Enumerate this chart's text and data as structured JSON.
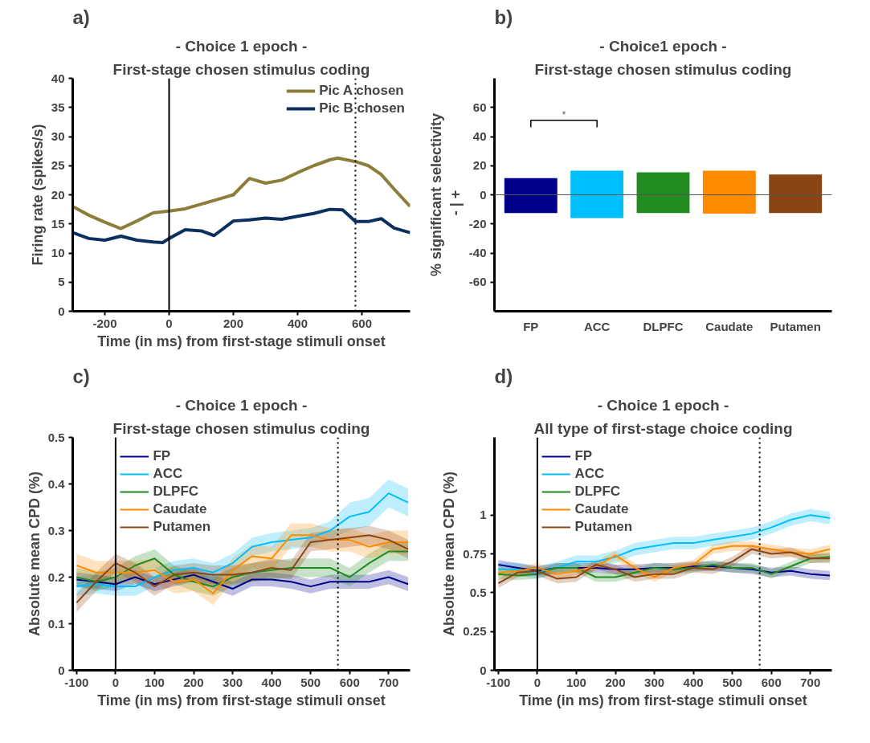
{
  "chart_data": [
    {
      "type": "line",
      "annotations": [
        "a)"
      ],
      "title": "- Choice 1 epoch -",
      "subtitle": "First-stage chosen stimulus coding",
      "xlabel": "Time (in ms) from first-stage stimuli onset",
      "ylabel": "Firing rate (spikes/s)",
      "xlim": [
        -300,
        750
      ],
      "ylim": [
        0,
        40
      ],
      "xticks": [
        -200,
        0,
        200,
        400,
        600
      ],
      "yticks": [
        0,
        5,
        10,
        15,
        20,
        25,
        30,
        35,
        40
      ],
      "legend": "top right",
      "ref_lines": [
        {
          "axis": "x",
          "value": 0,
          "color": "#000000",
          "line_style": "solid"
        },
        {
          "axis": "x",
          "value": 580,
          "color": "#000000",
          "line_style": "dotted"
        }
      ],
      "series": [
        {
          "name": "Pic A chosen",
          "color": "#8b7d3a",
          "x": [
            -300,
            -250,
            -200,
            -150,
            -100,
            -50,
            0,
            50,
            100,
            150,
            200,
            250,
            300,
            350,
            400,
            450,
            500,
            525,
            580,
            620,
            660,
            700,
            750
          ],
          "values": [
            18,
            16.5,
            15.3,
            14.2,
            15.5,
            16.9,
            17.2,
            17.6,
            18.4,
            19.2,
            20,
            22.8,
            22,
            22.5,
            23.8,
            25,
            26,
            26.3,
            25.7,
            25,
            23.5,
            21,
            18
          ]
        },
        {
          "name": "Pic B chosen",
          "color": "#0b2f5f",
          "x": [
            -300,
            -250,
            -200,
            -150,
            -100,
            -50,
            -20,
            0,
            50,
            100,
            140,
            200,
            250,
            300,
            350,
            400,
            450,
            500,
            540,
            580,
            620,
            660,
            700,
            750
          ],
          "values": [
            13.5,
            12.5,
            12.2,
            12.9,
            12.2,
            11.9,
            11.8,
            12.5,
            14,
            13.8,
            13,
            15.5,
            15.7,
            16,
            15.8,
            16.3,
            16.8,
            17.5,
            17.4,
            15.4,
            15.4,
            15.9,
            14.3,
            13.5
          ]
        }
      ]
    },
    {
      "type": "bar",
      "stacked": true,
      "annotations": [
        "b)",
        "*"
      ],
      "title": "- Choice1 epoch -",
      "subtitle": "First-stage chosen stimulus coding",
      "ylabel": "% significant selectivity\n-   |   +",
      "categories": [
        "FP",
        "ACC",
        "DLPFC",
        "Caudate",
        "Putamen"
      ],
      "ylim": [
        -80,
        80
      ],
      "yticks": [
        -60,
        -40,
        -20,
        0,
        20,
        40,
        60
      ],
      "ref_lines": [
        {
          "axis": "y",
          "value": 0,
          "color": "#555555",
          "line_style": "solid"
        }
      ],
      "series": [
        {
          "colors": [
            "#00008b",
            "#00bfff",
            "#228b22",
            "#ff8c00",
            "#8b4513"
          ],
          "values": [
            11.5,
            16.5,
            15.5,
            16.5,
            14
          ]
        },
        {
          "colors": [
            "#00008b",
            "#00bfff",
            "#228b22",
            "#ff8c00",
            "#8b4513"
          ],
          "values": [
            -12.5,
            -16,
            -12.5,
            -13,
            -12.5
          ]
        }
      ]
    },
    {
      "type": "line",
      "annotations": [
        "c)"
      ],
      "title": "- Choice 1 epoch -",
      "subtitle": "First-stage chosen stimulus coding",
      "xlabel": "Time (in ms) from first-stage stimuli onset",
      "ylabel": "Absolute mean CPD (%)",
      "xlim": [
        -110,
        755
      ],
      "ylim": [
        0,
        0.5
      ],
      "xticks": [
        -100,
        0,
        100,
        200,
        300,
        400,
        500,
        600,
        700
      ],
      "yticks": [
        0,
        0.1,
        0.2,
        0.3,
        0.4,
        0.5
      ],
      "legend": "top left",
      "ref_lines": [
        {
          "axis": "x",
          "value": 0,
          "color": "#000000",
          "line_style": "solid"
        },
        {
          "axis": "x",
          "value": 570,
          "color": "#000000",
          "line_style": "dotted"
        }
      ],
      "x": [
        -100,
        -50,
        0,
        50,
        100,
        150,
        200,
        250,
        300,
        350,
        400,
        450,
        500,
        550,
        600,
        650,
        700,
        750
      ],
      "series": [
        {
          "name": "FP",
          "color": "#00008b",
          "values": [
            0.195,
            0.19,
            0.185,
            0.2,
            0.185,
            0.195,
            0.205,
            0.19,
            0.175,
            0.195,
            0.195,
            0.19,
            0.18,
            0.19,
            0.19,
            0.19,
            0.2,
            0.185
          ],
          "lower": [
            0.18,
            0.175,
            0.17,
            0.185,
            0.17,
            0.18,
            0.19,
            0.175,
            0.16,
            0.18,
            0.18,
            0.175,
            0.165,
            0.175,
            0.175,
            0.175,
            0.185,
            0.17
          ],
          "upper": [
            0.21,
            0.205,
            0.2,
            0.215,
            0.2,
            0.21,
            0.22,
            0.205,
            0.19,
            0.21,
            0.21,
            0.205,
            0.195,
            0.205,
            0.205,
            0.205,
            0.215,
            0.2
          ]
        },
        {
          "name": "ACC",
          "color": "#00bfff",
          "values": [
            0.18,
            0.185,
            0.18,
            0.18,
            0.2,
            0.215,
            0.22,
            0.21,
            0.23,
            0.265,
            0.275,
            0.28,
            0.285,
            0.3,
            0.33,
            0.34,
            0.38,
            0.36
          ],
          "lower": [
            0.16,
            0.165,
            0.16,
            0.16,
            0.18,
            0.195,
            0.2,
            0.19,
            0.21,
            0.245,
            0.255,
            0.26,
            0.265,
            0.28,
            0.3,
            0.31,
            0.35,
            0.33
          ],
          "upper": [
            0.2,
            0.205,
            0.2,
            0.2,
            0.22,
            0.235,
            0.24,
            0.23,
            0.25,
            0.285,
            0.295,
            0.3,
            0.305,
            0.32,
            0.36,
            0.37,
            0.41,
            0.39
          ]
        },
        {
          "name": "DLPFC",
          "color": "#228b22",
          "values": [
            0.2,
            0.19,
            0.2,
            0.225,
            0.24,
            0.205,
            0.19,
            0.18,
            0.2,
            0.21,
            0.215,
            0.22,
            0.22,
            0.22,
            0.2,
            0.23,
            0.255,
            0.255
          ],
          "lower": [
            0.18,
            0.17,
            0.18,
            0.205,
            0.22,
            0.185,
            0.17,
            0.16,
            0.18,
            0.19,
            0.195,
            0.2,
            0.2,
            0.2,
            0.18,
            0.21,
            0.235,
            0.235
          ],
          "upper": [
            0.22,
            0.21,
            0.22,
            0.245,
            0.26,
            0.225,
            0.21,
            0.2,
            0.22,
            0.23,
            0.235,
            0.24,
            0.24,
            0.24,
            0.22,
            0.25,
            0.275,
            0.275
          ]
        },
        {
          "name": "Caudate",
          "color": "#ff8c00",
          "values": [
            0.225,
            0.21,
            0.21,
            0.21,
            0.215,
            0.19,
            0.195,
            0.165,
            0.215,
            0.245,
            0.24,
            0.29,
            0.29,
            0.28,
            0.28,
            0.265,
            0.275,
            0.275
          ],
          "lower": [
            0.2,
            0.185,
            0.185,
            0.185,
            0.19,
            0.165,
            0.17,
            0.14,
            0.19,
            0.22,
            0.215,
            0.265,
            0.265,
            0.255,
            0.255,
            0.24,
            0.25,
            0.25
          ],
          "upper": [
            0.25,
            0.235,
            0.235,
            0.235,
            0.24,
            0.215,
            0.22,
            0.19,
            0.24,
            0.27,
            0.265,
            0.315,
            0.315,
            0.305,
            0.305,
            0.29,
            0.3,
            0.3
          ]
        },
        {
          "name": "Putamen",
          "color": "#8b4513",
          "values": [
            0.145,
            0.19,
            0.23,
            0.21,
            0.18,
            0.205,
            0.21,
            0.205,
            0.205,
            0.21,
            0.22,
            0.215,
            0.275,
            0.28,
            0.285,
            0.29,
            0.28,
            0.26
          ],
          "lower": [
            0.125,
            0.17,
            0.21,
            0.19,
            0.16,
            0.185,
            0.19,
            0.185,
            0.185,
            0.19,
            0.2,
            0.195,
            0.255,
            0.26,
            0.265,
            0.27,
            0.26,
            0.24
          ],
          "upper": [
            0.165,
            0.21,
            0.25,
            0.23,
            0.2,
            0.225,
            0.23,
            0.225,
            0.225,
            0.23,
            0.24,
            0.235,
            0.295,
            0.3,
            0.305,
            0.31,
            0.3,
            0.28
          ]
        }
      ]
    },
    {
      "type": "line",
      "annotations": [
        "d)"
      ],
      "title": "- Choice 1 epoch -",
      "subtitle": "All type of first-stage choice coding",
      "xlabel": "Time (in ms) from first-stage stimuli onset",
      "ylabel": "Absolute mean CPD (%)",
      "xlim": [
        -110,
        755
      ],
      "ylim": [
        0,
        1.5
      ],
      "xticks": [
        -100,
        0,
        100,
        200,
        300,
        400,
        500,
        600,
        700
      ],
      "yticks": [
        0,
        0.25,
        0.5,
        0.75,
        1
      ],
      "legend": "top left",
      "ref_lines": [
        {
          "axis": "x",
          "value": 0,
          "color": "#000000",
          "line_style": "solid"
        },
        {
          "axis": "x",
          "value": 570,
          "color": "#000000",
          "line_style": "dotted"
        }
      ],
      "x": [
        -100,
        -50,
        0,
        50,
        100,
        150,
        200,
        250,
        300,
        350,
        400,
        450,
        500,
        550,
        600,
        650,
        700,
        750
      ],
      "series": [
        {
          "name": "FP",
          "color": "#00008b",
          "values": [
            0.68,
            0.66,
            0.64,
            0.66,
            0.66,
            0.66,
            0.65,
            0.65,
            0.66,
            0.66,
            0.67,
            0.67,
            0.66,
            0.65,
            0.63,
            0.64,
            0.62,
            0.61
          ],
          "lower": [
            0.65,
            0.63,
            0.61,
            0.63,
            0.63,
            0.63,
            0.62,
            0.62,
            0.63,
            0.63,
            0.64,
            0.64,
            0.63,
            0.62,
            0.6,
            0.61,
            0.59,
            0.58
          ],
          "upper": [
            0.71,
            0.69,
            0.67,
            0.69,
            0.69,
            0.69,
            0.68,
            0.68,
            0.69,
            0.69,
            0.7,
            0.7,
            0.69,
            0.68,
            0.66,
            0.67,
            0.65,
            0.64
          ]
        },
        {
          "name": "ACC",
          "color": "#00bfff",
          "values": [
            0.65,
            0.65,
            0.63,
            0.66,
            0.7,
            0.7,
            0.73,
            0.78,
            0.8,
            0.82,
            0.82,
            0.84,
            0.86,
            0.88,
            0.92,
            0.97,
            1.0,
            0.98
          ],
          "lower": [
            0.61,
            0.61,
            0.59,
            0.62,
            0.66,
            0.66,
            0.69,
            0.74,
            0.76,
            0.78,
            0.78,
            0.8,
            0.82,
            0.84,
            0.88,
            0.93,
            0.96,
            0.94
          ],
          "upper": [
            0.69,
            0.69,
            0.67,
            0.7,
            0.74,
            0.74,
            0.77,
            0.82,
            0.84,
            0.86,
            0.86,
            0.88,
            0.9,
            0.92,
            0.96,
            1.01,
            1.04,
            1.02
          ]
        },
        {
          "name": "DLPFC",
          "color": "#228b22",
          "values": [
            0.62,
            0.61,
            0.62,
            0.66,
            0.66,
            0.6,
            0.6,
            0.63,
            0.66,
            0.65,
            0.66,
            0.68,
            0.66,
            0.66,
            0.62,
            0.67,
            0.72,
            0.73
          ],
          "lower": [
            0.59,
            0.58,
            0.59,
            0.63,
            0.63,
            0.57,
            0.57,
            0.6,
            0.63,
            0.62,
            0.63,
            0.65,
            0.63,
            0.63,
            0.59,
            0.64,
            0.69,
            0.7
          ],
          "upper": [
            0.65,
            0.64,
            0.65,
            0.69,
            0.69,
            0.63,
            0.63,
            0.66,
            0.69,
            0.68,
            0.69,
            0.71,
            0.69,
            0.69,
            0.65,
            0.7,
            0.75,
            0.76
          ]
        },
        {
          "name": "Caudate",
          "color": "#ff8c00",
          "values": [
            0.63,
            0.64,
            0.66,
            0.62,
            0.64,
            0.67,
            0.74,
            0.66,
            0.6,
            0.66,
            0.68,
            0.78,
            0.8,
            0.8,
            0.78,
            0.76,
            0.75,
            0.78
          ],
          "lower": [
            0.6,
            0.61,
            0.63,
            0.59,
            0.61,
            0.64,
            0.71,
            0.63,
            0.57,
            0.63,
            0.65,
            0.75,
            0.77,
            0.77,
            0.75,
            0.73,
            0.72,
            0.75
          ],
          "upper": [
            0.66,
            0.67,
            0.69,
            0.65,
            0.67,
            0.7,
            0.77,
            0.69,
            0.63,
            0.69,
            0.71,
            0.81,
            0.83,
            0.83,
            0.81,
            0.79,
            0.78,
            0.81
          ]
        },
        {
          "name": "Putamen",
          "color": "#8b4513",
          "values": [
            0.56,
            0.63,
            0.64,
            0.59,
            0.6,
            0.68,
            0.65,
            0.6,
            0.62,
            0.62,
            0.66,
            0.65,
            0.7,
            0.78,
            0.75,
            0.76,
            0.72,
            0.72
          ],
          "lower": [
            0.53,
            0.6,
            0.61,
            0.56,
            0.57,
            0.65,
            0.62,
            0.57,
            0.59,
            0.59,
            0.63,
            0.62,
            0.67,
            0.75,
            0.72,
            0.73,
            0.69,
            0.69
          ],
          "upper": [
            0.59,
            0.66,
            0.67,
            0.62,
            0.63,
            0.71,
            0.68,
            0.63,
            0.65,
            0.65,
            0.69,
            0.68,
            0.73,
            0.81,
            0.78,
            0.79,
            0.75,
            0.75
          ]
        }
      ]
    }
  ]
}
